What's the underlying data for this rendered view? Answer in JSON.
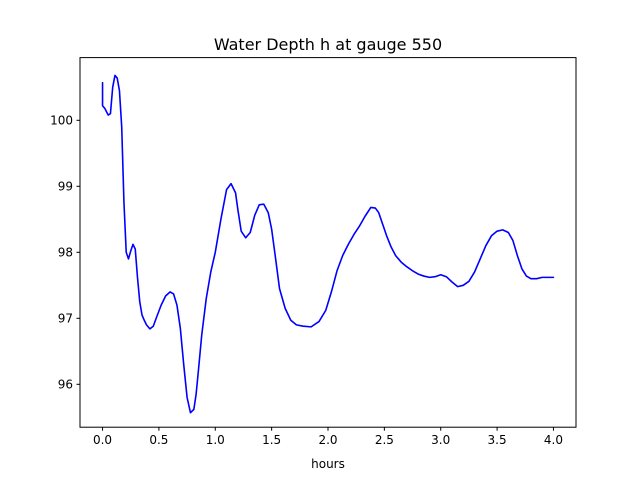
{
  "chart_data": {
    "type": "line",
    "title": "Water Depth h at gauge 550",
    "xlabel": "hours",
    "ylabel": "",
    "xlim": [
      -0.2,
      4.2
    ],
    "ylim": [
      95.35,
      100.95
    ],
    "xticks": [
      0.0,
      0.5,
      1.0,
      1.5,
      2.0,
      2.5,
      3.0,
      3.5,
      4.0
    ],
    "xtick_labels": [
      "0.0",
      "0.5",
      "1.0",
      "1.5",
      "2.0",
      "2.5",
      "3.0",
      "3.5",
      "4.0"
    ],
    "yticks": [
      96,
      97,
      98,
      99,
      100
    ],
    "ytick_labels": [
      "96",
      "97",
      "98",
      "99",
      "100"
    ],
    "grid": false,
    "colors": {
      "series": "#0000ff",
      "axes": "#000000",
      "background": "#ffffff"
    },
    "series": [
      {
        "x": [
          0.0,
          0.0,
          0.02,
          0.05,
          0.07,
          0.09,
          0.11,
          0.13,
          0.15,
          0.17,
          0.19,
          0.21,
          0.23,
          0.25,
          0.27,
          0.29,
          0.31,
          0.33,
          0.35,
          0.37,
          0.39,
          0.42,
          0.45,
          0.48,
          0.52,
          0.56,
          0.6,
          0.63,
          0.66,
          0.69,
          0.72,
          0.75,
          0.78,
          0.81,
          0.83,
          0.85,
          0.88,
          0.92,
          0.96,
          1.0,
          1.05,
          1.1,
          1.14,
          1.18,
          1.2,
          1.23,
          1.27,
          1.31,
          1.35,
          1.39,
          1.43,
          1.47,
          1.5,
          1.53,
          1.57,
          1.62,
          1.67,
          1.72,
          1.78,
          1.85,
          1.92,
          1.98,
          2.03,
          2.08,
          2.13,
          2.18,
          2.23,
          2.28,
          2.33,
          2.38,
          2.42,
          2.45,
          2.48,
          2.52,
          2.56,
          2.6,
          2.65,
          2.7,
          2.75,
          2.8,
          2.85,
          2.9,
          2.95,
          3.0,
          3.05,
          3.1,
          3.15,
          3.2,
          3.25,
          3.3,
          3.35,
          3.4,
          3.45,
          3.5,
          3.55,
          3.6,
          3.64,
          3.68,
          3.72,
          3.76,
          3.8,
          3.85,
          3.9,
          3.95,
          4.0
        ],
        "values": [
          100.57,
          100.22,
          100.18,
          100.08,
          100.1,
          100.5,
          100.68,
          100.64,
          100.45,
          99.9,
          98.75,
          98.0,
          97.9,
          98.02,
          98.12,
          98.05,
          97.62,
          97.25,
          97.05,
          96.97,
          96.9,
          96.84,
          96.88,
          97.02,
          97.2,
          97.34,
          97.4,
          97.37,
          97.2,
          96.85,
          96.3,
          95.8,
          95.57,
          95.62,
          95.85,
          96.2,
          96.75,
          97.3,
          97.7,
          98.0,
          98.5,
          98.95,
          99.04,
          98.9,
          98.65,
          98.32,
          98.22,
          98.3,
          98.56,
          98.72,
          98.73,
          98.6,
          98.35,
          97.97,
          97.45,
          97.15,
          96.97,
          96.9,
          96.88,
          96.87,
          96.95,
          97.12,
          97.4,
          97.72,
          97.95,
          98.12,
          98.27,
          98.4,
          98.55,
          98.68,
          98.67,
          98.6,
          98.45,
          98.25,
          98.08,
          97.95,
          97.85,
          97.78,
          97.72,
          97.67,
          97.64,
          97.62,
          97.63,
          97.66,
          97.63,
          97.55,
          97.48,
          97.5,
          97.56,
          97.7,
          97.9,
          98.1,
          98.25,
          98.32,
          98.34,
          98.3,
          98.18,
          97.95,
          97.75,
          97.64,
          97.6,
          97.6,
          97.62,
          97.62,
          97.62
        ]
      }
    ]
  }
}
